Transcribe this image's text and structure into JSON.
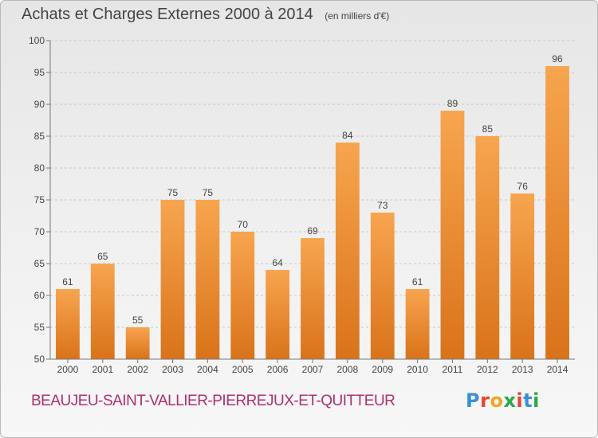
{
  "header": {
    "title": "Achats et Charges Externes 2000 à 2014",
    "subtitle": "(en milliers d'€)"
  },
  "footer": {
    "commune": "BEAUJEU-SAINT-VALLIER-PIERREJUX-ET-QUITTEUR",
    "brand": "Proxiti",
    "brand_colors": [
      "#3a8fd6",
      "#e8452c",
      "#f2a623",
      "#2aa84a",
      "#e8452c",
      "#3a8fd6",
      "#2aa84a"
    ]
  },
  "colors": {
    "bar_light": "#f7a54f",
    "bar_dark": "#d9731a",
    "axis_text": "#444444",
    "grid": "#c8c8c8"
  },
  "chart_data": {
    "type": "bar",
    "categories": [
      "2000",
      "2001",
      "2002",
      "2003",
      "2004",
      "2005",
      "2006",
      "2007",
      "2008",
      "2009",
      "2010",
      "2011",
      "2012",
      "2013",
      "2014"
    ],
    "values": [
      61,
      65,
      55,
      75,
      75,
      70,
      64,
      69,
      84,
      73,
      61,
      89,
      85,
      76,
      96
    ],
    "ylim": [
      50,
      100
    ],
    "yticks": [
      50,
      55,
      60,
      65,
      70,
      75,
      80,
      85,
      90,
      95,
      100
    ],
    "grid": true,
    "data_labels": true
  }
}
